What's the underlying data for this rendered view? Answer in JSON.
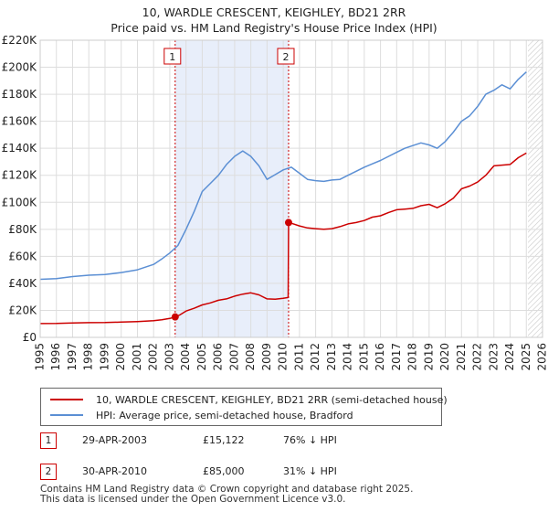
{
  "title": {
    "line1": "10, WARDLE CRESCENT, KEIGHLEY, BD21 2RR",
    "line2": "Price paid vs. HM Land Registry's House Price Index (HPI)"
  },
  "colors": {
    "price_line": "#cc0000",
    "hpi_line": "#5b8fd4",
    "shade": "#e8eefa",
    "grid": "#dddddd",
    "marker": "#cc0000"
  },
  "chart_data": {
    "type": "line",
    "title": "10, WARDLE CRESCENT, KEIGHLEY, BD21 2RR — Price paid vs. HM Land Registry's House Price Index (HPI)",
    "xlabel": "",
    "ylabel": "",
    "xlim": [
      1995,
      2026
    ],
    "ylim": [
      0,
      220000
    ],
    "grid": true,
    "x_ticks": [
      1995,
      1996,
      1997,
      1998,
      1999,
      2000,
      2001,
      2002,
      2003,
      2004,
      2005,
      2006,
      2007,
      2008,
      2009,
      2010,
      2011,
      2012,
      2013,
      2014,
      2015,
      2016,
      2017,
      2018,
      2019,
      2020,
      2021,
      2022,
      2023,
      2024,
      2025,
      2026
    ],
    "y_ticks": [
      {
        "value": 0,
        "label": "£0"
      },
      {
        "value": 20000,
        "label": "£20K"
      },
      {
        "value": 40000,
        "label": "£40K"
      },
      {
        "value": 60000,
        "label": "£60K"
      },
      {
        "value": 80000,
        "label": "£80K"
      },
      {
        "value": 100000,
        "label": "£100K"
      },
      {
        "value": 120000,
        "label": "£120K"
      },
      {
        "value": 140000,
        "label": "£140K"
      },
      {
        "value": 160000,
        "label": "£160K"
      },
      {
        "value": 180000,
        "label": "£180K"
      },
      {
        "value": 200000,
        "label": "£200K"
      },
      {
        "value": 220000,
        "label": "£220K"
      }
    ],
    "shaded_period": [
      2003.33,
      2010.33
    ],
    "future_hatch_from": 2025.1,
    "series": [
      {
        "name": "10, WARDLE CRESCENT, KEIGHLEY, BD21 2RR (semi-detached house)",
        "color": "#cc0000",
        "x": [
          1995,
          1996,
          1997,
          1998,
          1999,
          2000,
          2001,
          2002,
          2002.5,
          2003.0,
          2003.33,
          2003.6,
          2004,
          2004.5,
          2005,
          2005.5,
          2006,
          2006.5,
          2007,
          2007.5,
          2008,
          2008.5,
          2009,
          2009.5,
          2010.0,
          2010.3,
          2010.33,
          2010.5,
          2011,
          2011.5,
          2012,
          2012.5,
          2013,
          2013.5,
          2014,
          2014.5,
          2015,
          2015.5,
          2016,
          2016.5,
          2017,
          2017.5,
          2018,
          2018.5,
          2019,
          2019.5,
          2020,
          2020.5,
          2021,
          2021.5,
          2022,
          2022.5,
          2023,
          2023.5,
          2024,
          2024.5,
          2025.0
        ],
        "y": [
          10200,
          10300,
          10700,
          10900,
          11000,
          11300,
          11700,
          12300,
          13000,
          14000,
          15122,
          16500,
          19500,
          21500,
          24000,
          25500,
          27500,
          28500,
          30500,
          32000,
          33000,
          31500,
          28500,
          28200,
          29000,
          29500,
          85000,
          84500,
          82500,
          81000,
          80500,
          80000,
          80500,
          82000,
          84000,
          85000,
          86500,
          89000,
          90000,
          92500,
          94500,
          95000,
          95500,
          97500,
          98500,
          96000,
          99000,
          103000,
          110000,
          112000,
          115000,
          120000,
          127000,
          127500,
          128000,
          133000,
          136500
        ]
      },
      {
        "name": "HPI: Average price, semi-detached house, Bradford",
        "color": "#5b8fd4",
        "x": [
          1995,
          1996,
          1997,
          1998,
          1999,
          2000,
          2001,
          2002,
          2002.5,
          2003.0,
          2003.5,
          2004,
          2004.5,
          2005,
          2005.5,
          2006,
          2006.5,
          2007,
          2007.5,
          2008,
          2008.5,
          2009,
          2009.5,
          2010,
          2010.5,
          2011,
          2011.5,
          2012,
          2012.5,
          2013,
          2013.5,
          2014,
          2014.5,
          2015,
          2015.5,
          2016,
          2016.5,
          2017,
          2017.5,
          2018,
          2018.5,
          2019,
          2019.5,
          2020,
          2020.5,
          2021,
          2021.5,
          2022,
          2022.5,
          2023,
          2023.5,
          2024,
          2024.5,
          2025.0
        ],
        "y": [
          43000,
          43500,
          45000,
          46000,
          46500,
          48000,
          50000,
          54000,
          58000,
          62500,
          68000,
          80000,
          93000,
          108000,
          114000,
          120000,
          128000,
          134000,
          138000,
          134000,
          127000,
          117000,
          120500,
          124000,
          126000,
          121500,
          117000,
          116000,
          115500,
          116500,
          117000,
          120000,
          123000,
          126000,
          128500,
          131000,
          134000,
          137000,
          140000,
          142000,
          144000,
          142500,
          140000,
          145000,
          152000,
          160000,
          164000,
          171000,
          180000,
          183000,
          187000,
          184000,
          191000,
          196500
        ]
      }
    ],
    "annotations": [
      {
        "label": "1",
        "x": 2003.33,
        "y": 15122
      },
      {
        "label": "2",
        "x": 2010.33,
        "y": 85000
      }
    ]
  },
  "legend": {
    "price_label": "10, WARDLE CRESCENT, KEIGHLEY, BD21 2RR (semi-detached house)",
    "hpi_label": "HPI: Average price, semi-detached house, Bradford"
  },
  "sales": [
    {
      "num": "1",
      "date": "29-APR-2003",
      "price": "£15,122",
      "hpi": "76% ↓ HPI"
    },
    {
      "num": "2",
      "date": "30-APR-2010",
      "price": "£85,000",
      "hpi": "31% ↓ HPI"
    }
  ],
  "footer": {
    "line1": "Contains HM Land Registry data © Crown copyright and database right 2025.",
    "line2": "This data is licensed under the Open Government Licence v3.0."
  }
}
